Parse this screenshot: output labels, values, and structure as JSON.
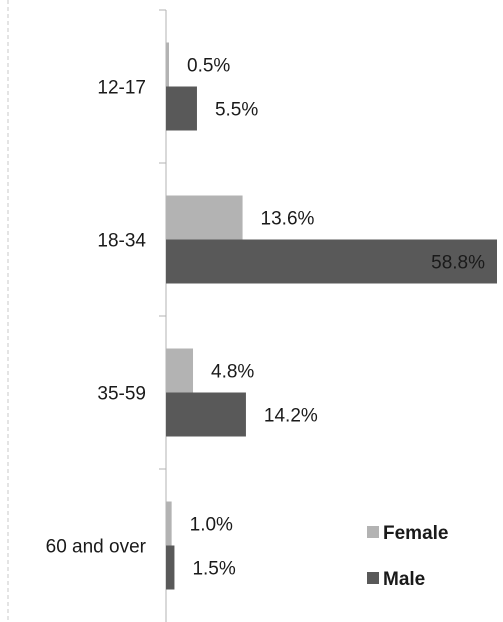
{
  "chart_data": {
    "type": "bar",
    "orientation": "horizontal",
    "categories": [
      "12-17",
      "18-34",
      "35-59",
      "60 and over"
    ],
    "series": [
      {
        "name": "Female",
        "values": [
          0.5,
          13.6,
          4.8,
          1.0
        ],
        "labels": [
          "0.5%",
          "13.6%",
          "4.8%",
          "1.0%"
        ],
        "color": "#b3b3b3"
      },
      {
        "name": "Male",
        "values": [
          5.5,
          58.8,
          14.2,
          1.5
        ],
        "labels": [
          "5.5%",
          "58.8%",
          "14.2%",
          "1.5%"
        ],
        "color": "#595959"
      }
    ],
    "xlim": [
      0,
      58.8
    ],
    "legend": "bottom-right",
    "grid": false
  }
}
